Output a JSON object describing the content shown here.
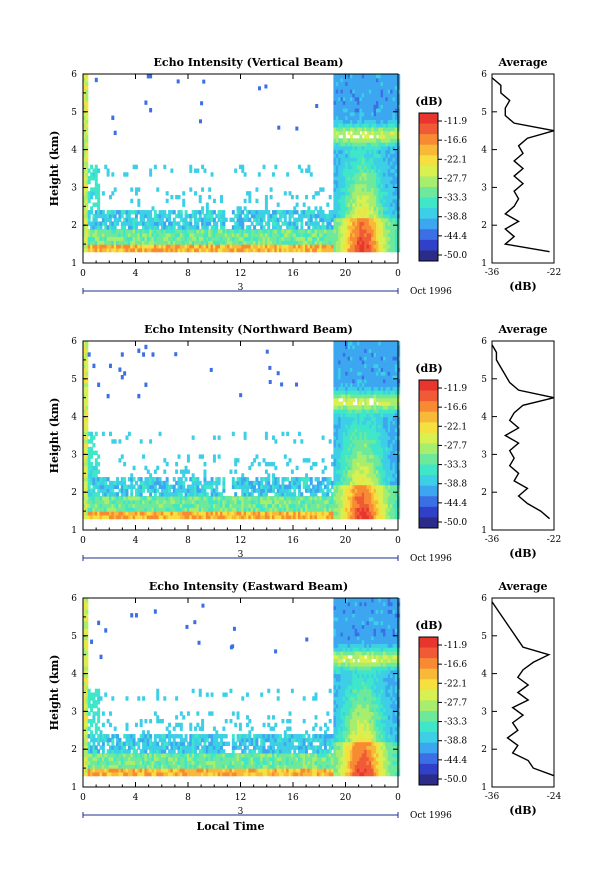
{
  "chart_data": [
    {
      "type": "heatmap",
      "title": "Echo Intensity (Vertical Beam)",
      "ylabel": "Height (km)",
      "xlabel": "",
      "x_ticks": [
        "0",
        "4",
        "8",
        "12",
        "16",
        "20",
        "0"
      ],
      "y_ticks": [
        "1",
        "2",
        "3",
        "4",
        "5",
        "6"
      ],
      "date_marker": "3",
      "date_label": "Oct 1996",
      "xlim": [
        0,
        24
      ],
      "ylim": [
        1,
        6
      ],
      "colorbar": {
        "unit": "(dB)",
        "levels": [
          "-11.9",
          "-16.6",
          "-22.1",
          "-27.7",
          "-33.3",
          "-38.8",
          "-44.4",
          "-50.0"
        ]
      },
      "profile": {
        "title": "Average",
        "xlabel": "(dB)",
        "x_ticks": [
          "-36",
          "-22"
        ],
        "xlim": [
          -36,
          -22
        ],
        "y_ticks": [
          "1",
          "2",
          "3",
          "4",
          "5",
          "6"
        ],
        "heights": [
          1.3,
          1.5,
          1.7,
          1.9,
          2.1,
          2.3,
          2.5,
          2.7,
          2.9,
          3.1,
          3.3,
          3.5,
          3.7,
          3.9,
          4.1,
          4.3,
          4.5,
          4.7,
          4.9,
          5.1,
          5.3,
          5.5,
          5.7,
          5.9
        ],
        "values": [
          -23,
          -33,
          -31,
          -33,
          -30,
          -33,
          -31,
          -30,
          -31,
          -29,
          -31,
          -29,
          -31,
          -29,
          -30,
          -28,
          -22,
          -31,
          -33,
          -33,
          -32,
          -34,
          -34,
          -36
        ]
      }
    },
    {
      "type": "heatmap",
      "title": "Echo Intensity (Northward Beam)",
      "ylabel": "Height (km)",
      "xlabel": "",
      "x_ticks": [
        "0",
        "4",
        "8",
        "12",
        "16",
        "20",
        "0"
      ],
      "y_ticks": [
        "1",
        "2",
        "3",
        "4",
        "5",
        "6"
      ],
      "date_marker": "3",
      "date_label": "Oct 1996",
      "xlim": [
        0,
        24
      ],
      "ylim": [
        1,
        6
      ],
      "colorbar": {
        "unit": "(dB)",
        "levels": [
          "-11.9",
          "-16.6",
          "-22.1",
          "-27.7",
          "-33.3",
          "-38.8",
          "-44.4",
          "-50.0"
        ]
      },
      "profile": {
        "title": "Average",
        "xlabel": "(dB)",
        "x_ticks": [
          "-36",
          "-22"
        ],
        "xlim": [
          -36,
          -22
        ],
        "y_ticks": [
          "1",
          "2",
          "3",
          "4",
          "5",
          "6"
        ],
        "heights": [
          1.3,
          1.5,
          1.7,
          1.9,
          2.1,
          2.3,
          2.5,
          2.7,
          2.9,
          3.1,
          3.3,
          3.5,
          3.7,
          3.9,
          4.1,
          4.3,
          4.5,
          4.7,
          4.9,
          5.1,
          5.3,
          5.5,
          5.7,
          5.9
        ],
        "values": [
          -23,
          -25,
          -28,
          -30,
          -28,
          -31,
          -30,
          -32,
          -31,
          -32,
          -30,
          -33,
          -30,
          -32,
          -31,
          -29,
          -22,
          -30,
          -32,
          -33,
          -34,
          -35,
          -35,
          -36
        ]
      }
    },
    {
      "type": "heatmap",
      "title": "Echo Intensity (Eastward Beam)",
      "ylabel": "Height (km)",
      "xlabel": "Local Time",
      "x_ticks": [
        "0",
        "4",
        "8",
        "12",
        "16",
        "20",
        "0"
      ],
      "y_ticks": [
        "1",
        "2",
        "3",
        "4",
        "5",
        "6"
      ],
      "date_marker": "3",
      "date_label": "Oct 1996",
      "xlim": [
        0,
        24
      ],
      "ylim": [
        1,
        6
      ],
      "colorbar": {
        "unit": "(dB)",
        "levels": [
          "-11.9",
          "-16.6",
          "-22.1",
          "-27.7",
          "-33.3",
          "-38.8",
          "-44.4",
          "-50.0"
        ]
      },
      "profile": {
        "title": "Average",
        "xlabel": "(dB)",
        "x_ticks": [
          "-36",
          "-24"
        ],
        "xlim": [
          -36,
          -24
        ],
        "y_ticks": [
          "1",
          "2",
          "3",
          "4",
          "5",
          "6"
        ],
        "heights": [
          1.3,
          1.5,
          1.7,
          1.9,
          2.1,
          2.3,
          2.5,
          2.7,
          2.9,
          3.1,
          3.3,
          3.5,
          3.7,
          3.9,
          4.1,
          4.3,
          4.5,
          4.7,
          4.9,
          5.1,
          5.3,
          5.5,
          5.7,
          5.9
        ],
        "values": [
          -24,
          -28,
          -29,
          -32,
          -31,
          -33,
          -31,
          -32,
          -30,
          -32,
          -29,
          -31,
          -29,
          -31,
          -30,
          -28,
          -25,
          -30,
          -31,
          -32,
          -33,
          -34,
          -35,
          -36
        ]
      }
    }
  ],
  "colors": {
    "colormap": [
      "#2b2b8a",
      "#3040c8",
      "#3c6fe6",
      "#3ca6f0",
      "#3ccfe6",
      "#40e6c8",
      "#6ee89a",
      "#a8ee6e",
      "#d8f050",
      "#f5e040",
      "#f8b838",
      "#f88a34",
      "#f05a36",
      "#e8362e"
    ],
    "axis": "#000000",
    "date_axis": "#1f2f8f"
  }
}
